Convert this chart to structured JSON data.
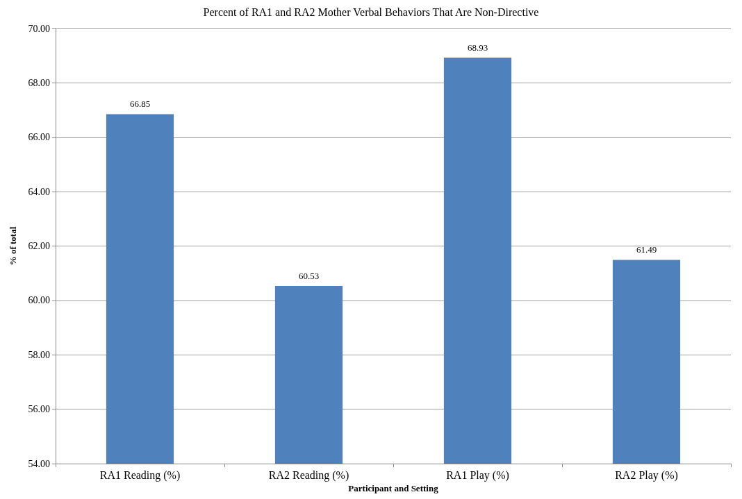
{
  "chart_data": {
    "type": "bar",
    "title": "Percent of RA1 and RA2 Mother Verbal Behaviors That Are Non-Directive",
    "xlabel": "Participant and Setting",
    "ylabel": "% of total",
    "categories": [
      "RA1 Reading (%)",
      "RA2 Reading (%)",
      "RA1 Play (%)",
      "RA2 Play (%)"
    ],
    "values": [
      66.85,
      60.53,
      68.93,
      61.49
    ],
    "color": "#4f81bd",
    "ylim": [
      54,
      70
    ],
    "yticks": [
      {
        "value": 54,
        "label": "54.00"
      },
      {
        "value": 56,
        "label": "56.00"
      },
      {
        "value": 58,
        "label": "58.00"
      },
      {
        "value": 60,
        "label": "60.00"
      },
      {
        "value": 62,
        "label": "62.00"
      },
      {
        "value": 64,
        "label": "64.00"
      },
      {
        "value": 66,
        "label": "66.00"
      },
      {
        "value": 68,
        "label": "68.00"
      },
      {
        "value": 70,
        "label": "70.00"
      }
    ],
    "grid": "y",
    "data_labels": true
  }
}
